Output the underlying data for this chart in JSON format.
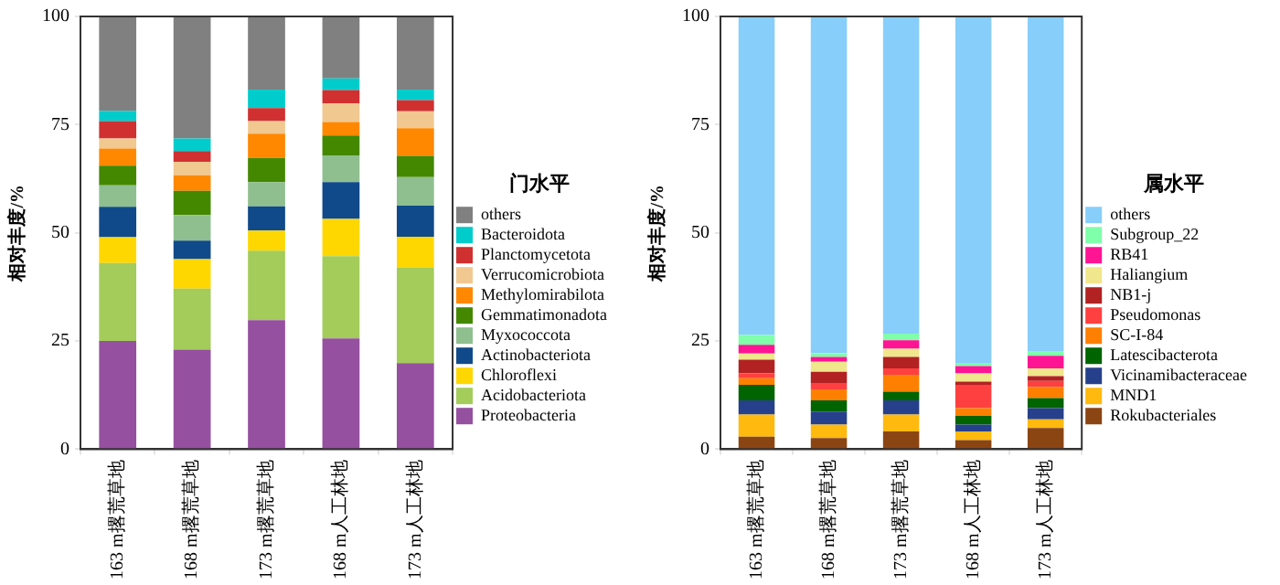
{
  "chart_data": [
    {
      "type": "bar",
      "stacked": true,
      "ylabel": "相对丰度/%",
      "legend_title": "门水平",
      "legend": "right",
      "grid": false,
      "categories": [
        "163 m撂荒草地",
        "168 m撂荒草地",
        "173 m撂荒草地",
        "168 m人工林地",
        "173 m人工林地"
      ],
      "ylim": [
        0,
        100
      ],
      "yticks": [
        0,
        25,
        50,
        75,
        100
      ],
      "series": [
        {
          "name": "Proteobacteria",
          "color": "#9650a0",
          "values": [
            25,
            23,
            29.8,
            25.6,
            19.9
          ]
        },
        {
          "name": "Acidobacteriota",
          "color": "#a3cc5a",
          "values": [
            18,
            14.1,
            16.1,
            19,
            22.1
          ]
        },
        {
          "name": "Chloroflexi",
          "color": "#ffd700",
          "values": [
            6,
            6.8,
            4.6,
            8.6,
            7.1
          ]
        },
        {
          "name": "Actinobacteriota",
          "color": "#104a8a",
          "values": [
            7,
            4.3,
            5.6,
            8.5,
            7.2
          ]
        },
        {
          "name": "Myxococcota",
          "color": "#8fbf8f",
          "values": [
            5,
            5.9,
            5.6,
            6.2,
            6.6
          ]
        },
        {
          "name": "Gemmatimonadota",
          "color": "#448800",
          "values": [
            4.5,
            5.6,
            5.6,
            4.6,
            4.9
          ]
        },
        {
          "name": "Methylomirabilota",
          "color": "#ff8800",
          "values": [
            4,
            3.6,
            5.6,
            3.1,
            6.4
          ]
        },
        {
          "name": "Verrucomicrobiota",
          "color": "#f0c890",
          "values": [
            2.3,
            3.1,
            2.9,
            4.3,
            3.9
          ]
        },
        {
          "name": "Planctomycetota",
          "color": "#d03030",
          "values": [
            4,
            2.5,
            3,
            3.1,
            2.6
          ]
        },
        {
          "name": "Bacteroidota",
          "color": "#00cccc",
          "values": [
            2.4,
            2.9,
            4.3,
            2.7,
            2.4
          ]
        },
        {
          "name": "others",
          "color": "#808080",
          "values": [
            21.8,
            28.2,
            16.9,
            14.3,
            16.9
          ]
        }
      ]
    },
    {
      "type": "bar",
      "stacked": true,
      "ylabel": "相对丰度/%",
      "legend_title": "属水平",
      "legend": "right",
      "grid": false,
      "categories": [
        "163 m撂荒草地",
        "168 m撂荒草地",
        "173 m撂荒草地",
        "168 m人工林地",
        "173 m人工林地"
      ],
      "ylim": [
        0,
        100
      ],
      "yticks": [
        0,
        25,
        50,
        75,
        100
      ],
      "series": [
        {
          "name": "Rokubacteriales",
          "color": "#8b4513",
          "values": [
            2.9,
            2.6,
            4.1,
            2.1,
            4.9
          ]
        },
        {
          "name": "MND1",
          "color": "#ffb90f",
          "values": [
            5.1,
            3.1,
            3.9,
            2,
            2
          ]
        },
        {
          "name": "Vicinamibacteraceae",
          "color": "#27408b",
          "values": [
            3.3,
            3,
            3.3,
            1.6,
            2.6
          ]
        },
        {
          "name": "Latescibacterota",
          "color": "#006400",
          "values": [
            3.6,
            2.6,
            2,
            2,
            2.3
          ]
        },
        {
          "name": "SC-I-84",
          "color": "#ff8000",
          "values": [
            1.5,
            2.5,
            3.9,
            1.8,
            2.6
          ]
        },
        {
          "name": "Pseudomonas",
          "color": "#ff4040",
          "values": [
            1.1,
            1.5,
            1.5,
            5.4,
            1.4
          ]
        },
        {
          "name": "NB1-j",
          "color": "#b22222",
          "values": [
            3.2,
            2.6,
            2.6,
            0.7,
            1.1
          ]
        },
        {
          "name": "Haliangium",
          "color": "#f0e68c",
          "values": [
            1.4,
            2.3,
            1.9,
            1.9,
            1.8
          ]
        },
        {
          "name": "RB41",
          "color": "#ff1493",
          "values": [
            2,
            1.1,
            2,
            1.7,
            2.9
          ]
        },
        {
          "name": "Subgroup_22",
          "color": "#7fffaa",
          "values": [
            2.3,
            0.9,
            1.5,
            0.6,
            1.1
          ]
        },
        {
          "name": "others",
          "color": "#87cefa",
          "values": [
            73.6,
            77.8,
            73.3,
            80.2,
            77.3
          ]
        }
      ]
    }
  ]
}
